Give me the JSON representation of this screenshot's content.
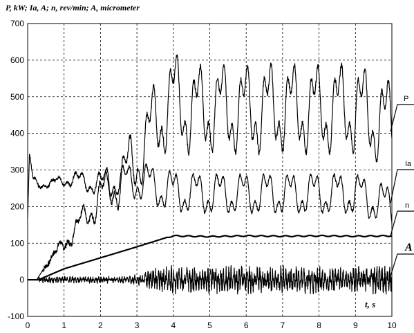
{
  "chart_data": {
    "type": "line",
    "title": "P, kW; Ia, A; n, rev/min; A, micrometer",
    "xlabel": "t, s",
    "ylabel": "",
    "xlim": [
      0,
      10
    ],
    "ylim": [
      -100,
      700
    ],
    "xticks": [
      "0",
      "1",
      "2",
      "3",
      "4",
      "5",
      "6",
      "7",
      "8",
      "9",
      "10"
    ],
    "yticks": [
      "-100",
      "0",
      "100",
      "200",
      "300",
      "400",
      "500",
      "600",
      "700"
    ],
    "grid": true,
    "series": [
      {
        "name": "P",
        "x": [
          0,
          0.25,
          0.5,
          1.0,
          1.5,
          2.0,
          2.5,
          3.0,
          3.5,
          4.0,
          4.5,
          5.0,
          6.0,
          7.0,
          8.0,
          9.0,
          10.0
        ],
        "y": [
          0,
          0,
          40,
          100,
          160,
          230,
          270,
          330,
          430,
          500,
          460,
          470,
          465,
          470,
          465,
          470,
          420
        ],
        "oscillation_amplitude_steady": 130
      },
      {
        "name": "Ia",
        "x": [
          0,
          0.05,
          0.15,
          0.3,
          0.6,
          1.0,
          1.5,
          2.0,
          2.5,
          3.0,
          3.5,
          4.0,
          5.0,
          6.0,
          7.0,
          8.0,
          9.0,
          10.0
        ],
        "y": [
          160,
          340,
          275,
          260,
          260,
          275,
          270,
          260,
          270,
          270,
          255,
          240,
          235,
          235,
          235,
          235,
          235,
          200
        ],
        "oscillation_amplitude_steady": 60
      },
      {
        "name": "n",
        "x": [
          0,
          0.3,
          1.0,
          2.0,
          3.0,
          3.8,
          4.0,
          5.0,
          6.0,
          7.0,
          8.0,
          9.0,
          10.0
        ],
        "y": [
          0,
          0,
          30,
          60,
          90,
          115,
          120,
          118,
          120,
          119,
          120,
          119,
          120
        ]
      },
      {
        "name": "A",
        "x": [
          0,
          0.3,
          1.0,
          2.0,
          2.5,
          3.0,
          4.0,
          5.0,
          6.0,
          7.0,
          8.0,
          9.0,
          10.0
        ],
        "y": [
          0,
          0,
          0,
          0,
          0,
          0,
          0,
          0,
          0,
          0,
          0,
          0,
          0
        ],
        "oscillation_amplitude_steady": 35
      }
    ],
    "legend": "right-side labels with leader lines"
  }
}
